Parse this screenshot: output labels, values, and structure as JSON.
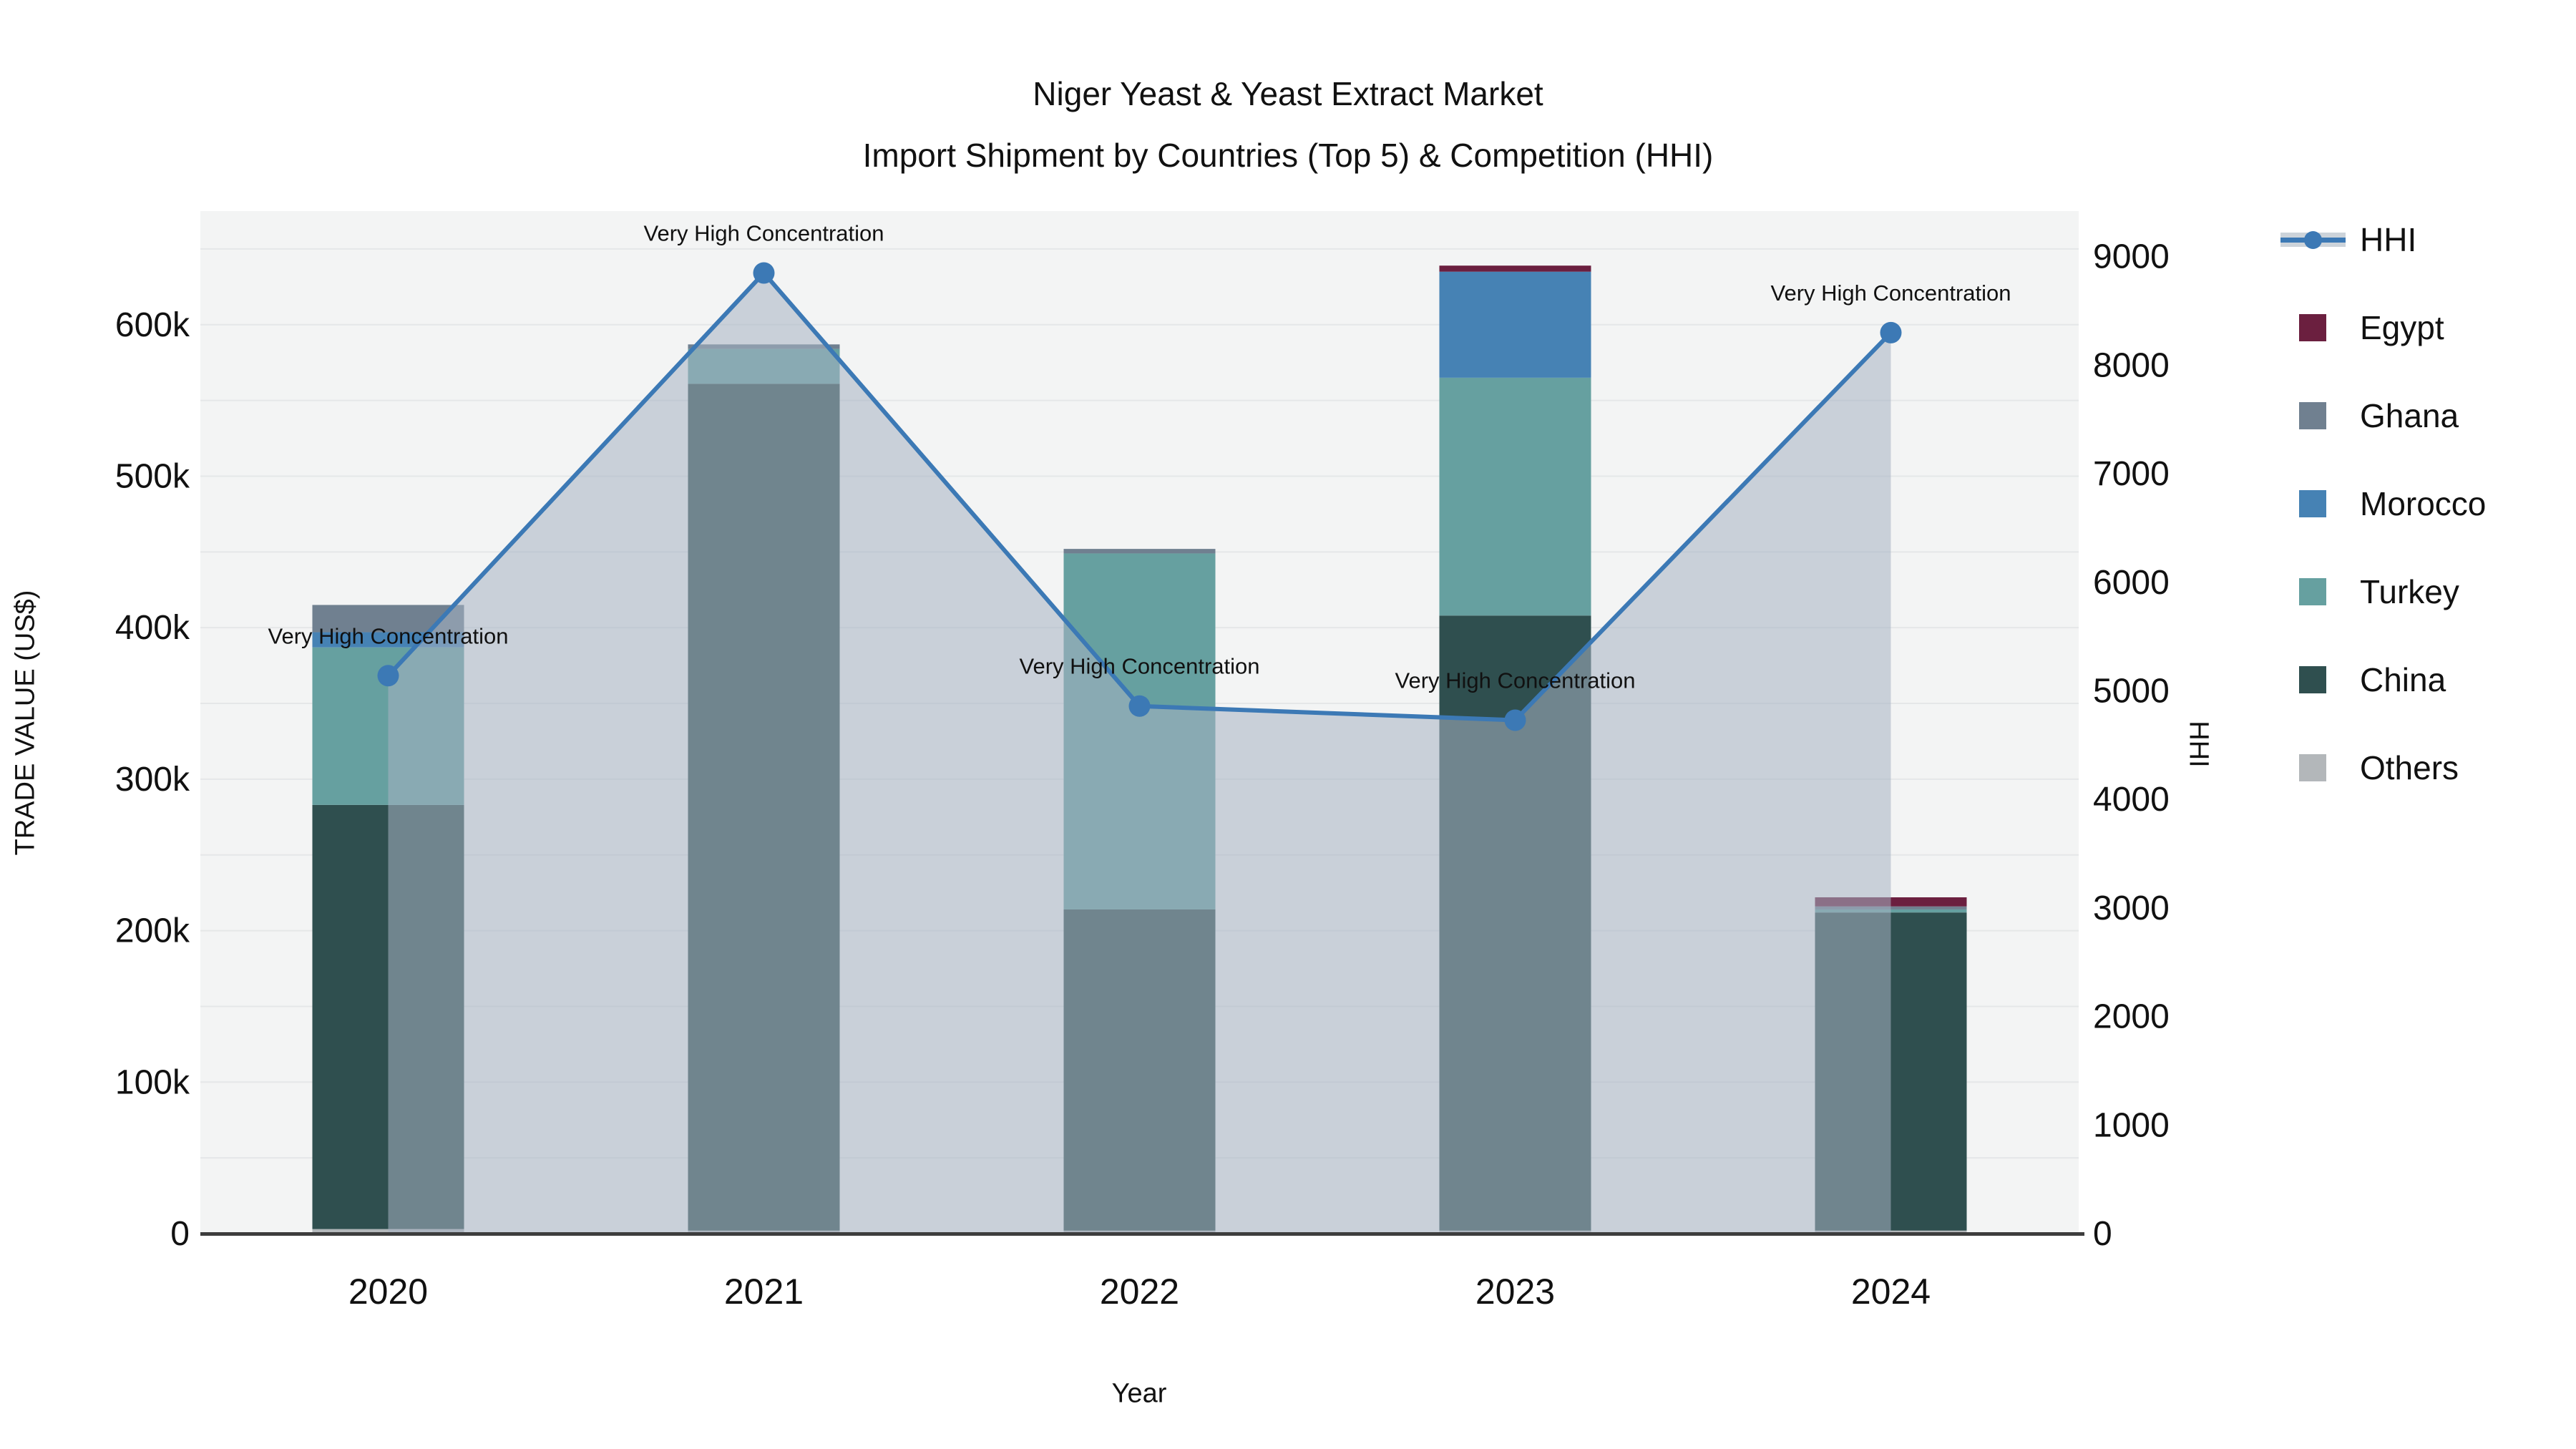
{
  "title": {
    "line1": "Niger Yeast & Yeast Extract Market",
    "line2": "Import Shipment by Countries (Top 5) & Competition (HHI)"
  },
  "axes": {
    "left_title": "TRADE VALUE (US$)",
    "right_title": "HHI",
    "x_title": "Year",
    "left_tick_labels": [
      "0",
      "100k",
      "200k",
      "300k",
      "400k",
      "500k",
      "600k"
    ],
    "left_tick_values": [
      0,
      100000,
      200000,
      300000,
      400000,
      500000,
      600000
    ],
    "right_tick_labels": [
      "0",
      "1000",
      "2000",
      "3000",
      "4000",
      "5000",
      "6000",
      "7000",
      "8000",
      "9000"
    ],
    "right_tick_values": [
      0,
      1000,
      2000,
      3000,
      4000,
      5000,
      6000,
      7000,
      8000,
      9000
    ]
  },
  "legend": [
    {
      "label": "HHI",
      "color": "#3c79b5",
      "type": "line"
    },
    {
      "label": "Egypt",
      "color": "#6b1f3f",
      "type": "swatch"
    },
    {
      "label": "Ghana",
      "color": "#708090",
      "type": "swatch"
    },
    {
      "label": "Morocco",
      "color": "#4682b4",
      "type": "swatch"
    },
    {
      "label": "Turkey",
      "color": "#66a0a0",
      "type": "swatch"
    },
    {
      "label": "China",
      "color": "#2f4f4f",
      "type": "swatch"
    },
    {
      "label": "Others",
      "color": "#b3b7ba",
      "type": "swatch"
    }
  ],
  "chart_data": {
    "type": "bar",
    "subtype": "stacked-bar-with-line",
    "categories": [
      "2020",
      "2021",
      "2022",
      "2023",
      "2024"
    ],
    "stack_order": "bottom-to-top",
    "series": [
      {
        "name": "Others",
        "color": "#b3b7ba",
        "values": [
          3000,
          2000,
          2000,
          2000,
          2000
        ]
      },
      {
        "name": "China",
        "color": "#2f4f4f",
        "values": [
          280000,
          559000,
          212000,
          406000,
          210000
        ]
      },
      {
        "name": "Turkey",
        "color": "#66a0a0",
        "values": [
          104000,
          23000,
          235000,
          157000,
          2000
        ]
      },
      {
        "name": "Morocco",
        "color": "#4682b4",
        "values": [
          10000,
          0,
          0,
          70000,
          0
        ]
      },
      {
        "name": "Ghana",
        "color": "#708090",
        "values": [
          18000,
          3000,
          3000,
          0,
          2000
        ]
      },
      {
        "name": "Egypt",
        "color": "#6b1f3f",
        "values": [
          0,
          0,
          0,
          4000,
          6000
        ]
      }
    ],
    "line_series": {
      "name": "HHI",
      "color": "#3c79b5",
      "fill_color": "rgba(165,178,194,0.55)",
      "values": [
        5140,
        8850,
        4860,
        4730,
        8300
      ]
    },
    "annotations": [
      {
        "text": "Very High Concentration",
        "category_index": 0
      },
      {
        "text": "Very High Concentration",
        "category_index": 1
      },
      {
        "text": "Very High Concentration",
        "category_index": 2
      },
      {
        "text": "Very High Concentration",
        "category_index": 3
      },
      {
        "text": "Very High Concentration",
        "category_index": 4
      }
    ],
    "title": "Niger Yeast & Yeast Extract Market Import Shipment by Countries (Top 5) & Competition (HHI)",
    "xlabel": "Year",
    "ylabel_left": "TRADE VALUE (US$)",
    "ylabel_right": "HHI",
    "ylim_left": [
      0,
      675000
    ],
    "ylim_right": [
      0,
      9420
    ],
    "grid": {
      "show": true,
      "interval_left_axis": 50000
    },
    "legend_position": "right"
  }
}
